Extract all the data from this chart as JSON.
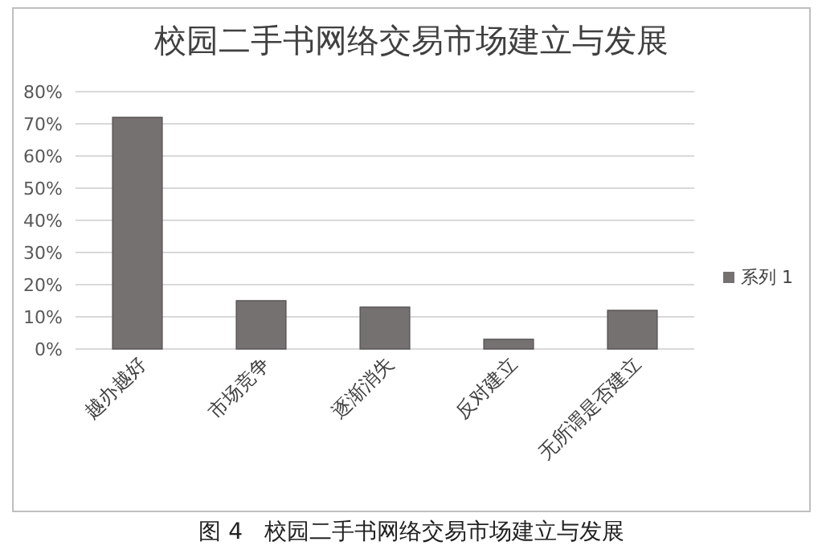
{
  "chart_data": {
    "type": "bar",
    "title": "校园二手书网络交易市场建立与发展",
    "categories": [
      "越办越好",
      "市场竞争",
      "逐渐消失",
      "反对建立",
      "无所谓是否建立"
    ],
    "series": [
      {
        "name": "系列 1",
        "color": "#767171",
        "values": [
          72,
          15,
          13,
          3,
          12
        ]
      }
    ],
    "ylim": [
      0,
      80
    ],
    "yticks": [
      {
        "value": 0,
        "label": "0%"
      },
      {
        "value": 10,
        "label": "10%"
      },
      {
        "value": 20,
        "label": "20%"
      },
      {
        "value": 30,
        "label": "30%"
      },
      {
        "value": 40,
        "label": "40%"
      },
      {
        "value": 50,
        "label": "50%"
      },
      {
        "value": 60,
        "label": "60%"
      },
      {
        "value": 70,
        "label": "70%"
      },
      {
        "value": 80,
        "label": "80%"
      }
    ],
    "grid": "y",
    "legend": "right",
    "annotations": [
      "图 4   校园二手书网络交易市场建立与发展"
    ]
  }
}
